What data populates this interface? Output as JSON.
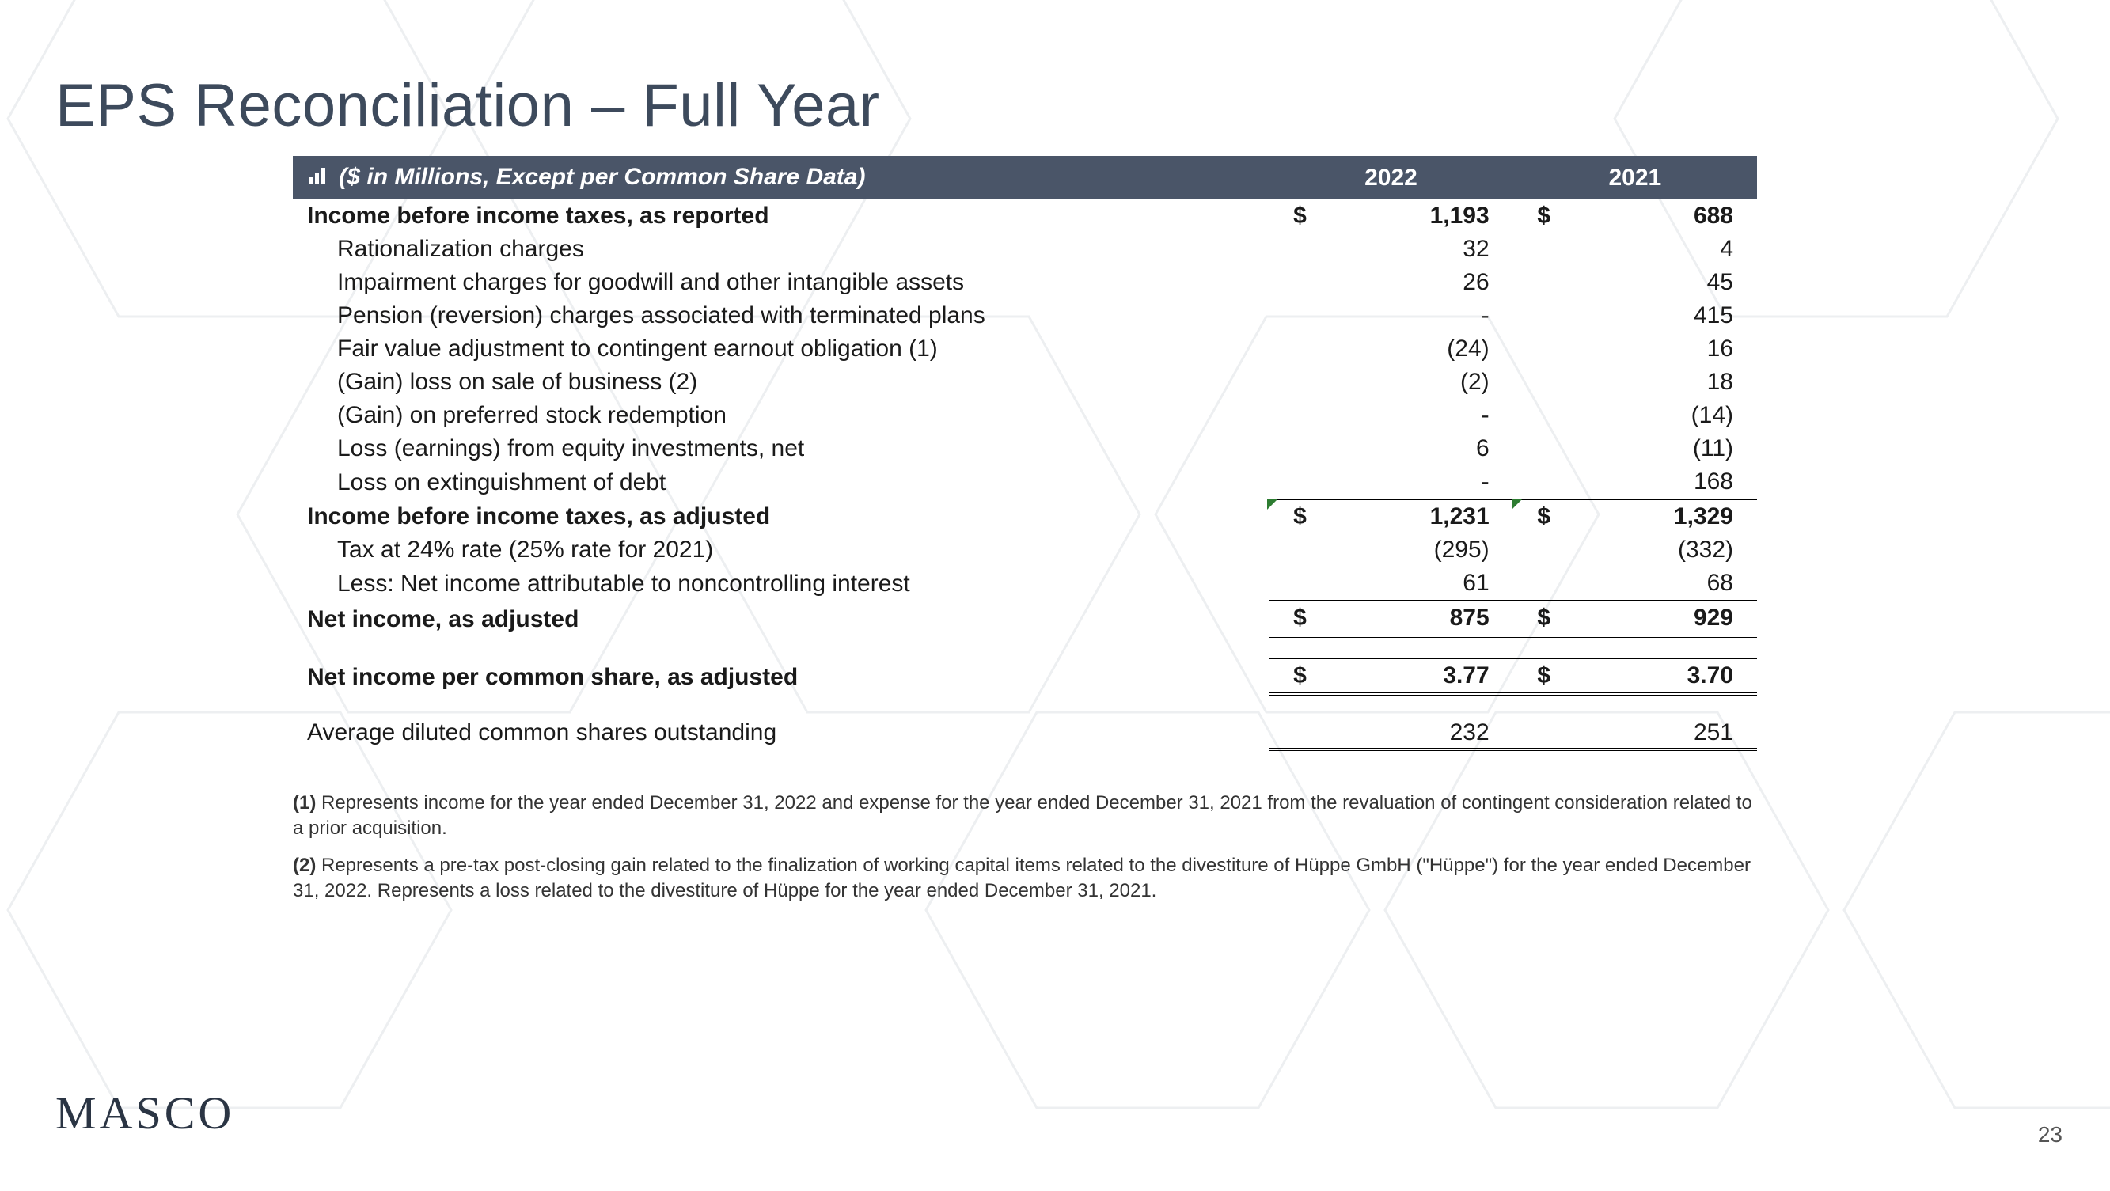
{
  "title": "EPS Reconciliation – Full Year",
  "header": {
    "caption": "($ in Millions, Except per Common Share Data)",
    "year_a": "2022",
    "year_b": "2021"
  },
  "colors": {
    "header_bg": "#4a5568",
    "header_text": "#ffffff",
    "title_text": "#3d4a5c",
    "body_text": "#1a1a1a",
    "triangle": "#2e7d32",
    "hex_stroke": "#e8eaec"
  },
  "rows": [
    {
      "label": "Income before income taxes, as reported",
      "bold": true,
      "cur": "$",
      "a": "1,193",
      "b": "688"
    },
    {
      "label": "Rationalization charges",
      "indent": true,
      "a": "32",
      "b": "4"
    },
    {
      "label": "Impairment charges for goodwill and other intangible assets",
      "indent": true,
      "a": "26",
      "b": "45"
    },
    {
      "label": "Pension (reversion) charges associated with terminated plans",
      "indent": true,
      "a": "-",
      "b": "415"
    },
    {
      "label": "Fair value adjustment to contingent earnout obligation (1)",
      "indent": true,
      "a": "(24)",
      "b": "16"
    },
    {
      "label": "(Gain) loss on sale of business (2)",
      "indent": true,
      "a": "(2)",
      "b": "18"
    },
    {
      "label": "(Gain) on preferred stock redemption",
      "indent": true,
      "a": "-",
      "b": "(14)"
    },
    {
      "label": "Loss (earnings) from equity investments, net",
      "indent": true,
      "a": "6",
      "b": "(11)"
    },
    {
      "label": "Loss on extinguishment of debt",
      "indent": true,
      "a": "-",
      "b": "168",
      "underline": true
    },
    {
      "label": "Income before income taxes, as adjusted",
      "bold": true,
      "cur": "$",
      "a": "1,231",
      "b": "1,329",
      "tri": true
    },
    {
      "label": "Tax at 24% rate (25% rate for 2021)",
      "indent": true,
      "a": "(295)",
      "b": "(332)"
    },
    {
      "label": "Less: Net income attributable to noncontrolling interest",
      "indent": true,
      "a": "61",
      "b": "68",
      "underline": true
    },
    {
      "label": "Net income, as adjusted",
      "bold": true,
      "cur": "$",
      "a": "875",
      "b": "929",
      "double": true
    },
    {
      "spacer": true
    },
    {
      "label": "Net income per common share, as adjusted",
      "bold": true,
      "cur": "$",
      "a": "3.77",
      "b": "3.70",
      "double": true
    },
    {
      "spacer": true
    },
    {
      "label": "Average diluted common shares outstanding",
      "a": "232",
      "b": "251",
      "double_only": true
    }
  ],
  "footnotes": [
    {
      "num": "(1)",
      "text": "Represents income for the year ended December 31, 2022 and expense for the year ended December 31, 2021 from the revaluation of contingent consideration related to a prior acquisition."
    },
    {
      "num": "(2)",
      "text": "Represents a pre-tax post-closing gain related to the finalization of working capital items related to the divestiture of Hüppe GmbH (\"Hüppe\") for the year ended December 31, 2022. Represents a loss related to the divestiture of Hüppe for the year ended December 31, 2021."
    }
  ],
  "logo": "MASCO",
  "page_number": "23"
}
